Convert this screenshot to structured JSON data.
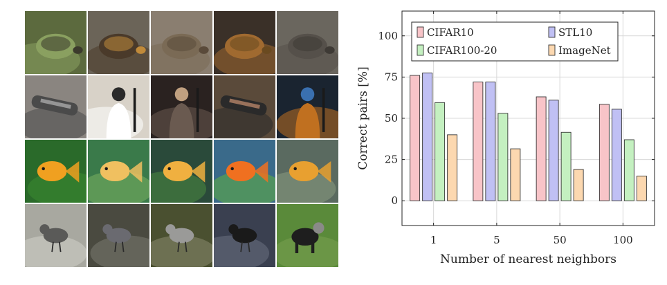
{
  "image_grid": {
    "rows": [
      {
        "subject": "turtle",
        "tiles": [
          {
            "bg": "#5c6a3e",
            "mid": "#8aa060",
            "fg": "#3b3a2c",
            "subject_shape": "turtle"
          },
          {
            "bg": "#6b6458",
            "mid": "#4a3a2a",
            "fg": "#c08a3a",
            "subject_shape": "turtle"
          },
          {
            "bg": "#8a7e70",
            "mid": "#7a6a55",
            "fg": "#5a4a3a",
            "subject_shape": "turtle"
          },
          {
            "bg": "#3a3028",
            "mid": "#a06a30",
            "fg": "#6a4a20",
            "subject_shape": "turtle"
          },
          {
            "bg": "#6a665e",
            "mid": "#55504a",
            "fg": "#3e3a35",
            "subject_shape": "turtle"
          }
        ]
      },
      {
        "subject": "clarinet",
        "tiles": [
          {
            "bg": "#8a8580",
            "mid": "#4a4a4a",
            "fg": "#b5b5b5",
            "subject_shape": "tube"
          },
          {
            "bg": "#d8d2c8",
            "mid": "#ffffff",
            "fg": "#2a2a2a",
            "subject_shape": "person"
          },
          {
            "bg": "#2a2220",
            "mid": "#6a5a50",
            "fg": "#c0a080",
            "subject_shape": "person"
          },
          {
            "bg": "#5a4a3a",
            "mid": "#2a2a2a",
            "fg": "#c89070",
            "subject_shape": "tube"
          },
          {
            "bg": "#1a2430",
            "mid": "#c07020",
            "fg": "#3a70b0",
            "subject_shape": "person"
          }
        ]
      },
      {
        "subject": "goldfish",
        "tiles": [
          {
            "bg": "#2a6a2a",
            "mid": "#3a8a30",
            "fg": "#f0a020",
            "subject_shape": "fish"
          },
          {
            "bg": "#3a7a4a",
            "mid": "#7ab060",
            "fg": "#f0c060",
            "subject_shape": "fish"
          },
          {
            "bg": "#2a4a3a",
            "mid": "#4a8a40",
            "fg": "#f0b040",
            "subject_shape": "fish"
          },
          {
            "bg": "#3a6a8a",
            "mid": "#60b040",
            "fg": "#f07020",
            "subject_shape": "fish"
          },
          {
            "bg": "#5a6a60",
            "mid": "#8a9a80",
            "fg": "#e8a030",
            "subject_shape": "fish"
          }
        ]
      },
      {
        "subject": "bird",
        "tiles": [
          {
            "bg": "#a8a8a0",
            "mid": "#d0d0c8",
            "fg": "#5a5a58",
            "subject_shape": "bird"
          },
          {
            "bg": "#4a4a40",
            "mid": "#7a7a70",
            "fg": "#6a6a70",
            "subject_shape": "bird"
          },
          {
            "bg": "#4a5030",
            "mid": "#8a8a70",
            "fg": "#9a9a98",
            "subject_shape": "bird"
          },
          {
            "bg": "#3a4050",
            "mid": "#6a7080",
            "fg": "#1a1a1a",
            "subject_shape": "bird"
          },
          {
            "bg": "#5a8a3a",
            "mid": "#7aa050",
            "fg": "#1e1e1e",
            "subject_shape": "dog"
          }
        ]
      }
    ]
  },
  "chart_data": {
    "type": "bar",
    "xlabel": "Number of nearest neighbors",
    "ylabel": "Correct pairs [%]",
    "categories": [
      "1",
      "5",
      "50",
      "100"
    ],
    "ylim": [
      -15,
      115
    ],
    "yticks": [
      0,
      25,
      50,
      75,
      100
    ],
    "grid": true,
    "legend_position": "top",
    "series": [
      {
        "name": "CIFAR10",
        "color": "#f8c4c8",
        "stroke": "#c0404a",
        "values": [
          76,
          72,
          63,
          58.5
        ]
      },
      {
        "name": "STL10",
        "color": "#c0c0f4",
        "stroke": "#4a4ab0",
        "values": [
          77.5,
          72,
          61,
          55.5
        ]
      },
      {
        "name": "CIFAR100-20",
        "color": "#c4f0c0",
        "stroke": "#40a040",
        "values": [
          59.5,
          53,
          41.5,
          37
        ]
      },
      {
        "name": "ImageNet",
        "color": "#fcd8b0",
        "stroke": "#c08040",
        "values": [
          40,
          31.5,
          19,
          15
        ]
      }
    ]
  }
}
